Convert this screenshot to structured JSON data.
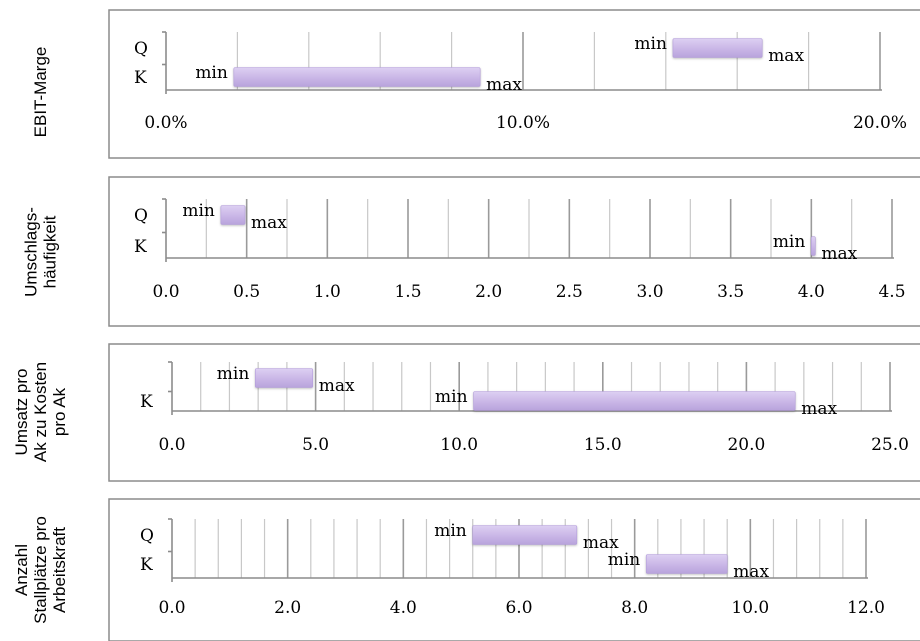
{
  "colors": {
    "bar": "#c9b6e6",
    "bar_edge": "#b39ddb",
    "axis": "#8c8c8c",
    "grid": "#c8c8c8",
    "panel_border": "#8c8c8c"
  },
  "labels": {
    "min": "min",
    "max": "max"
  },
  "chart_data": [
    {
      "type": "range-bar",
      "ylabel_lines": [
        "EBIT-Marge"
      ],
      "categories": [
        "Q",
        "K"
      ],
      "xlim": [
        0,
        20
      ],
      "gridline_step": 2,
      "tick_labels": [
        "0.0%",
        "10.0%",
        "20.0%"
      ],
      "tick_values": [
        0,
        10,
        20
      ],
      "ranges": [
        {
          "category": "Q",
          "min": 14.2,
          "max": 16.7
        },
        {
          "category": "K",
          "min": 1.9,
          "max": 8.8
        }
      ]
    },
    {
      "type": "range-bar",
      "ylabel_lines": [
        "Umschlags-",
        "häufigkeit"
      ],
      "categories": [
        "Q",
        "K"
      ],
      "xlim": [
        0,
        4.5
      ],
      "gridline_step": 0.25,
      "tick_labels": [
        "0.0",
        "0.5",
        "1.0",
        "1.5",
        "2.0",
        "2.5",
        "3.0",
        "3.5",
        "4.0",
        "4.5"
      ],
      "tick_values": [
        0,
        0.5,
        1,
        1.5,
        2,
        2.5,
        3,
        3.5,
        4,
        4.5
      ],
      "ranges": [
        {
          "category": "Q",
          "min": 0.34,
          "max": 0.49
        },
        {
          "category": "K",
          "min": 4.0,
          "max": 4.02
        }
      ]
    },
    {
      "type": "range-bar",
      "ylabel_lines": [
        "Umsatz pro",
        "Ak zu Kosten",
        "pro Ak"
      ],
      "categories": [
        "",
        "K"
      ],
      "xlim": [
        0,
        25
      ],
      "gridline_step": 1,
      "tick_labels": [
        "0.0",
        "5.0",
        "10.0",
        "15.0",
        "20.0",
        "25.0"
      ],
      "tick_values": [
        0,
        5,
        10,
        15,
        20,
        25
      ],
      "ranges": [
        {
          "category": "",
          "min": 2.9,
          "max": 4.9
        },
        {
          "category": "K",
          "min": 10.5,
          "max": 21.7
        }
      ]
    },
    {
      "type": "range-bar",
      "ylabel_lines": [
        "Anzahl",
        "Stallplätze pro",
        "Arbeitskraft"
      ],
      "categories": [
        "Q",
        "K"
      ],
      "xlim": [
        0,
        12
      ],
      "gridline_step": 0.4,
      "tick_labels": [
        "0.0",
        "2.0",
        "4.0",
        "6.0",
        "8.0",
        "10.0",
        "12.0"
      ],
      "tick_values": [
        0,
        2,
        4,
        6,
        8,
        10,
        12
      ],
      "ranges": [
        {
          "category": "Q",
          "min": 5.2,
          "max": 7.0
        },
        {
          "category": "K",
          "min": 8.2,
          "max": 9.6
        }
      ]
    }
  ]
}
